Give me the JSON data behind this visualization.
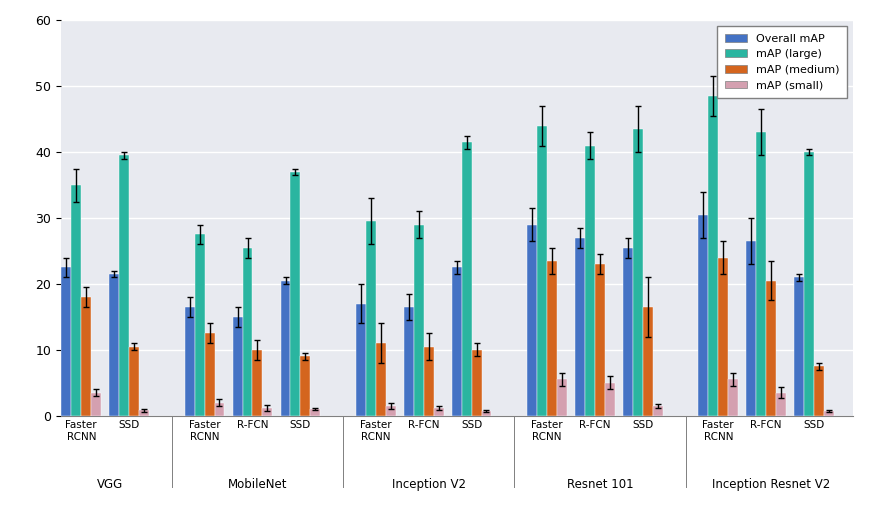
{
  "title": "",
  "background_color": "#e8eaf0",
  "ylim": [
    0,
    60
  ],
  "yticks": [
    0,
    10,
    20,
    30,
    40,
    50,
    60
  ],
  "legend_labels": [
    "Overall mAP",
    "mAP (large)",
    "mAP (medium)",
    "mAP (small)"
  ],
  "colors": [
    "#4472c4",
    "#2ab5a0",
    "#d4651e",
    "#d4a0b0"
  ],
  "backbone_groups": [
    "VGG",
    "MobileNet",
    "Inception V2",
    "Resnet 101",
    "Inception Resnet V2"
  ],
  "detectors": {
    "VGG": [
      "Faster\nRCNN",
      "SSD"
    ],
    "MobileNet": [
      "Faster\nRCNN",
      "R-FCN",
      "SSD"
    ],
    "Inception V2": [
      "Faster\nRCNN",
      "R-FCN",
      "SSD"
    ],
    "Resnet 101": [
      "Faster\nRCNN",
      "R-FCN",
      "SSD"
    ],
    "Inception Resnet V2": [
      "Faster\nRCNN",
      "R-FCN",
      "SSD"
    ]
  },
  "data": {
    "VGG": {
      "Faster\nRCNN": {
        "overall": 22.5,
        "large": 35.0,
        "medium": 18.0,
        "small": 3.5,
        "overall_err": 1.5,
        "large_err": 2.5,
        "medium_err": 1.5,
        "small_err": 0.5
      },
      "SSD": {
        "overall": 21.5,
        "large": 39.5,
        "medium": 10.5,
        "small": 0.8,
        "overall_err": 0.5,
        "large_err": 0.5,
        "medium_err": 0.5,
        "small_err": 0.2
      }
    },
    "MobileNet": {
      "Faster\nRCNN": {
        "overall": 16.5,
        "large": 27.5,
        "medium": 12.5,
        "small": 2.0,
        "overall_err": 1.5,
        "large_err": 1.5,
        "medium_err": 1.5,
        "small_err": 0.5
      },
      "R-FCN": {
        "overall": 15.0,
        "large": 25.5,
        "medium": 10.0,
        "small": 1.2,
        "overall_err": 1.5,
        "large_err": 1.5,
        "medium_err": 1.5,
        "small_err": 0.5
      },
      "SSD": {
        "overall": 20.5,
        "large": 37.0,
        "medium": 9.0,
        "small": 1.0,
        "overall_err": 0.5,
        "large_err": 0.5,
        "medium_err": 0.5,
        "small_err": 0.2
      }
    },
    "Inception V2": {
      "Faster\nRCNN": {
        "overall": 17.0,
        "large": 29.5,
        "medium": 11.0,
        "small": 1.5,
        "overall_err": 3.0,
        "large_err": 3.5,
        "medium_err": 3.0,
        "small_err": 0.5
      },
      "R-FCN": {
        "overall": 16.5,
        "large": 29.0,
        "medium": 10.5,
        "small": 1.2,
        "overall_err": 2.0,
        "large_err": 2.0,
        "medium_err": 2.0,
        "small_err": 0.3
      },
      "SSD": {
        "overall": 22.5,
        "large": 41.5,
        "medium": 10.0,
        "small": 0.7,
        "overall_err": 1.0,
        "large_err": 1.0,
        "medium_err": 1.0,
        "small_err": 0.2
      }
    },
    "Resnet 101": {
      "Faster\nRCNN": {
        "overall": 29.0,
        "large": 44.0,
        "medium": 23.5,
        "small": 5.5,
        "overall_err": 2.5,
        "large_err": 3.0,
        "medium_err": 2.0,
        "small_err": 1.0
      },
      "R-FCN": {
        "overall": 27.0,
        "large": 41.0,
        "medium": 23.0,
        "small": 5.0,
        "overall_err": 1.5,
        "large_err": 2.0,
        "medium_err": 1.5,
        "small_err": 1.0
      },
      "SSD": {
        "overall": 25.5,
        "large": 43.5,
        "medium": 16.5,
        "small": 1.5,
        "overall_err": 1.5,
        "large_err": 3.5,
        "medium_err": 4.5,
        "small_err": 0.3
      }
    },
    "Inception Resnet V2": {
      "Faster\nRCNN": {
        "overall": 30.5,
        "large": 48.5,
        "medium": 24.0,
        "small": 5.5,
        "overall_err": 3.5,
        "large_err": 3.0,
        "medium_err": 2.5,
        "small_err": 1.0
      },
      "R-FCN": {
        "overall": 26.5,
        "large": 43.0,
        "medium": 20.5,
        "small": 3.5,
        "overall_err": 3.5,
        "large_err": 3.5,
        "medium_err": 3.0,
        "small_err": 0.8
      },
      "SSD": {
        "overall": 21.0,
        "large": 40.0,
        "medium": 7.5,
        "small": 0.7,
        "overall_err": 0.5,
        "large_err": 0.5,
        "medium_err": 0.5,
        "small_err": 0.2
      }
    }
  }
}
